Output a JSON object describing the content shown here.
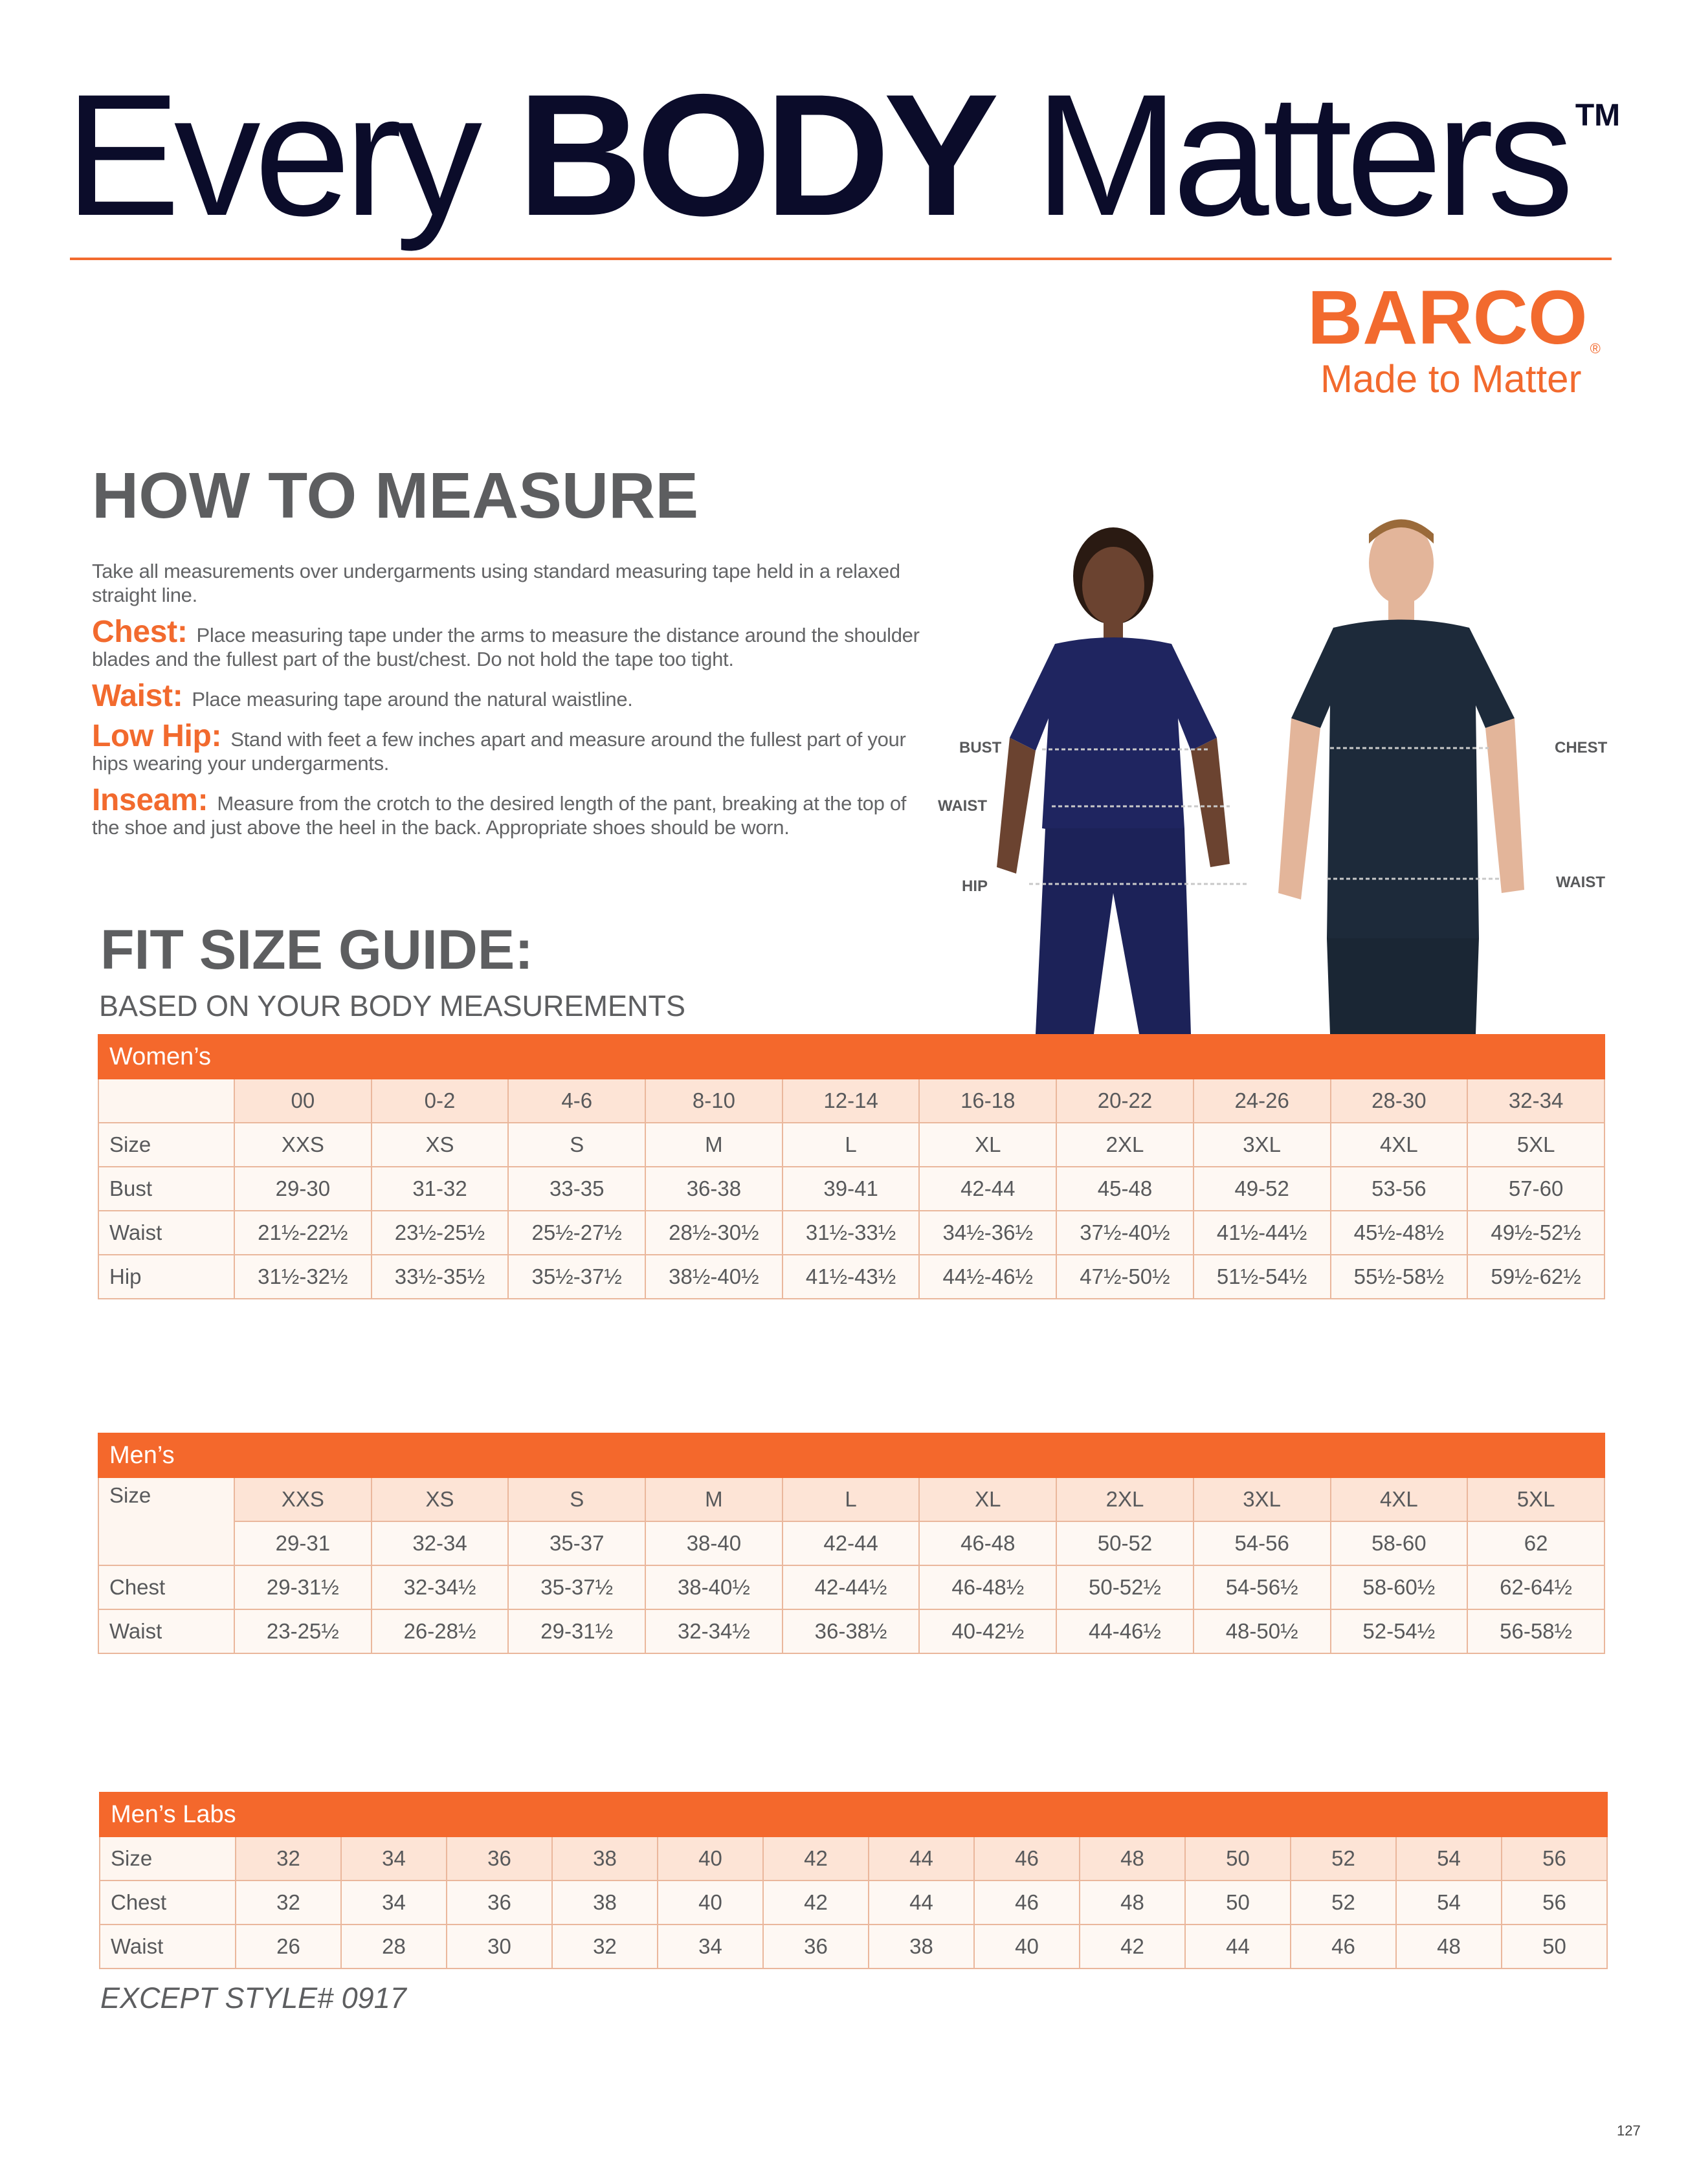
{
  "header": {
    "title_pre": "Every",
    "title_bold": "BODY",
    "title_post": "Matters",
    "trademark": "TM",
    "brand": "BARCO",
    "brand_registered": "®",
    "tagline": "Made to Matter",
    "colors": {
      "accent": "#f26a2e",
      "title": "#0b0c2a",
      "scrub_navy": "#1f2560",
      "scrub_dark": "#1d2a3a"
    }
  },
  "how_to_measure": {
    "title": "HOW TO MEASURE",
    "intro": "Take all measurements over undergarments using standard measuring tape held in a relaxed straight line.",
    "items": [
      {
        "label": "Chest:",
        "text": "Place measuring tape under the arms to measure the distance around the shoulder blades and the fullest part of the bust/chest. Do not hold the tape too tight."
      },
      {
        "label": "Waist:",
        "text": "Place measuring tape around the natural waistline."
      },
      {
        "label": "Low Hip:",
        "text": "Stand with feet a few inches apart and measure around the fullest part of your hips wearing your undergarments."
      },
      {
        "label": "Inseam:",
        "text": "Measure from the crotch to the desired length of the pant, breaking at the top of the shoe and just above the heel in the back. Appropriate shoes should be worn."
      }
    ],
    "figure_labels": {
      "bust": "BUST",
      "waist_w": "WAIST",
      "hip": "HIP",
      "chest": "CHEST",
      "waist_m": "WAIST"
    }
  },
  "fit_guide": {
    "title": "FIT SIZE GUIDE:",
    "subtitle": "BASED ON YOUR BODY MEASUREMENTS",
    "womens": {
      "title": "Women’s",
      "rows": [
        {
          "label": "",
          "tint": true,
          "cells": [
            "00",
            "0-2",
            "4-6",
            "8-10",
            "12-14",
            "16-18",
            "20-22",
            "24-26",
            "28-30",
            "32-34"
          ]
        },
        {
          "label": "Size",
          "cells": [
            "XXS",
            "XS",
            "S",
            "M",
            "L",
            "XL",
            "2XL",
            "3XL",
            "4XL",
            "5XL"
          ]
        },
        {
          "label": "Bust",
          "cells": [
            "29-30",
            "31-32",
            "33-35",
            "36-38",
            "39-41",
            "42-44",
            "45-48",
            "49-52",
            "53-56",
            "57-60"
          ]
        },
        {
          "label": "Waist",
          "cells": [
            "21½-22½",
            "23½-25½",
            "25½-27½",
            "28½-30½",
            "31½-33½",
            "34½-36½",
            "37½-40½",
            "41½-44½",
            "45½-48½",
            "49½-52½"
          ]
        },
        {
          "label": "Hip",
          "cells": [
            "31½-32½",
            "33½-35½",
            "35½-37½",
            "38½-40½",
            "41½-43½",
            "44½-46½",
            "47½-50½",
            "51½-54½",
            "55½-58½",
            "59½-62½"
          ]
        }
      ]
    },
    "mens": {
      "title": "Men’s",
      "rows": [
        {
          "label": "Size",
          "tint": true,
          "span": 2,
          "cells": [
            "XXS",
            "XS",
            "S",
            "M",
            "L",
            "XL",
            "2XL",
            "3XL",
            "4XL",
            "5XL"
          ]
        },
        {
          "cells": [
            "29-31",
            "32-34",
            "35-37",
            "38-40",
            "42-44",
            "46-48",
            "50-52",
            "54-56",
            "58-60",
            "62"
          ]
        },
        {
          "label": "Chest",
          "cells": [
            "29-31½",
            "32-34½",
            "35-37½",
            "38-40½",
            "42-44½",
            "46-48½",
            "50-52½",
            "54-56½",
            "58-60½",
            "62-64½"
          ]
        },
        {
          "label": "Waist",
          "cells": [
            "23-25½",
            "26-28½",
            "29-31½",
            "32-34½",
            "36-38½",
            "40-42½",
            "44-46½",
            "48-50½",
            "52-54½",
            "56-58½"
          ]
        }
      ]
    },
    "mens_labs": {
      "title": "Men’s Labs",
      "rows": [
        {
          "label": "Size",
          "tint": true,
          "cells": [
            "32",
            "34",
            "36",
            "38",
            "40",
            "42",
            "44",
            "46",
            "48",
            "50",
            "52",
            "54",
            "56"
          ]
        },
        {
          "label": "Chest",
          "cells": [
            "32",
            "34",
            "36",
            "38",
            "40",
            "42",
            "44",
            "46",
            "48",
            "50",
            "52",
            "54",
            "56"
          ]
        },
        {
          "label": "Waist",
          "cells": [
            "26",
            "28",
            "30",
            "32",
            "34",
            "36",
            "38",
            "40",
            "42",
            "44",
            "46",
            "48",
            "50"
          ]
        }
      ]
    },
    "note": "EXCEPT STYLE# 0917"
  },
  "page_number": "127"
}
